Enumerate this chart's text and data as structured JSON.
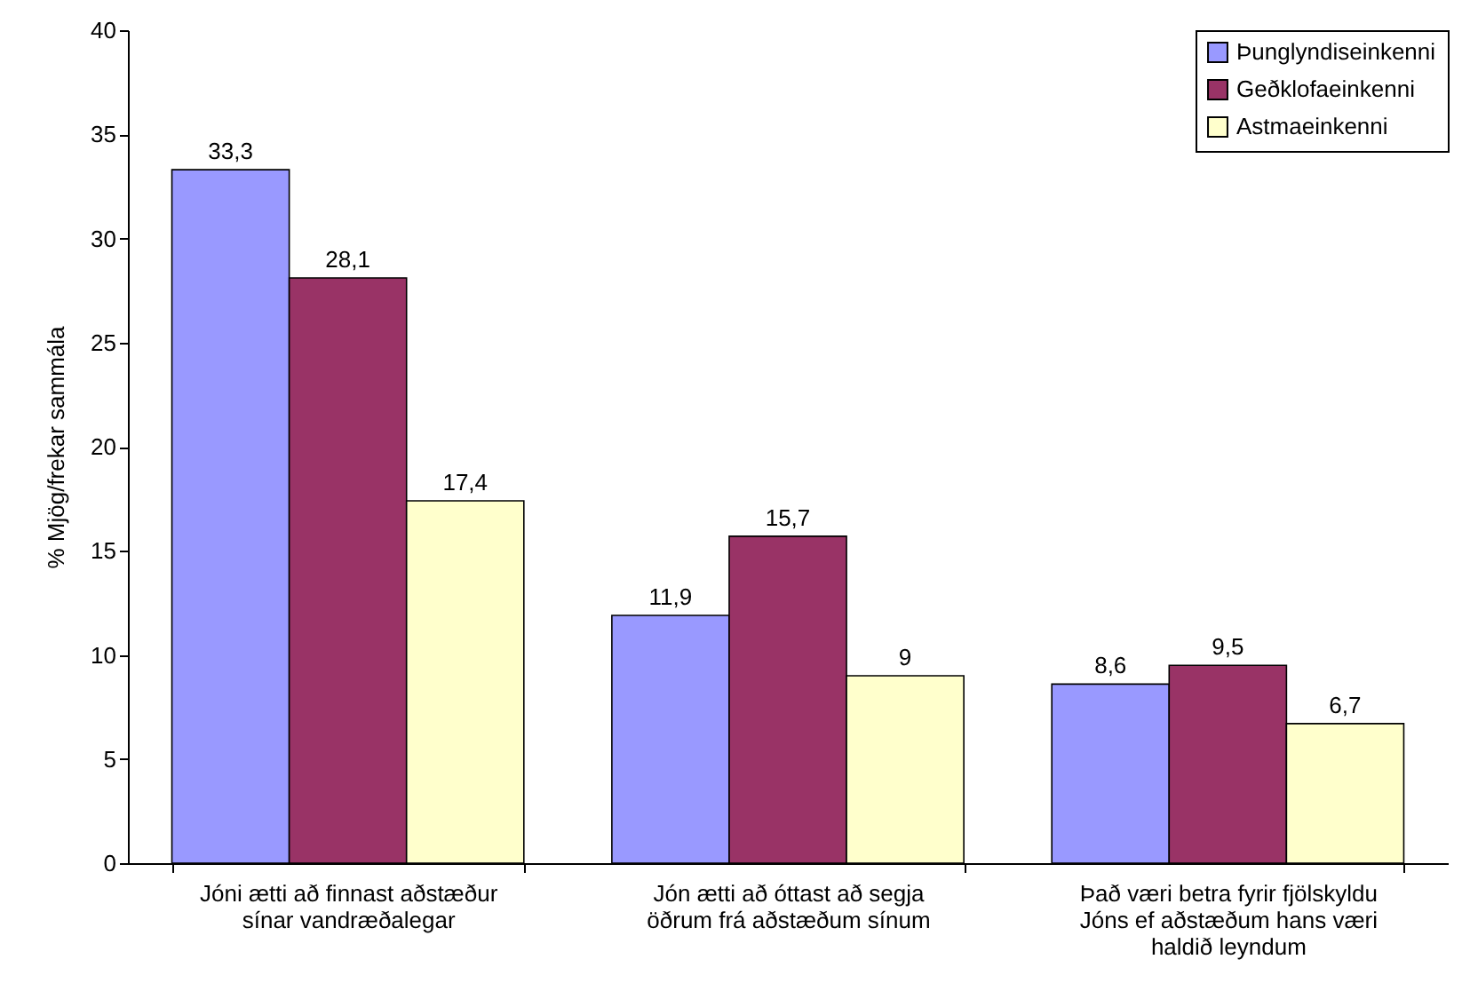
{
  "chart_data": {
    "type": "bar",
    "ylabel": "% Mjög/frekar sammála",
    "categories": [
      "Jóni ætti að finnast aðstæður\nsínar vandræðalegar",
      "Jón ætti að óttast að segja\nöðrum frá aðstæðum sínum",
      "Það væri betra fyrir fjölskyldu\nJóns ef aðstæðum hans væri\nhaldið leyndum"
    ],
    "series": [
      {
        "name": "Þunglyndiseinkenni",
        "color": "#9999ff",
        "values": [
          33.3,
          11.9,
          8.6
        ],
        "value_labels": [
          "33,3",
          "11,9",
          "8,6"
        ]
      },
      {
        "name": "Geðklofaeinkenni",
        "color": "#993366",
        "values": [
          28.1,
          15.7,
          9.5
        ],
        "value_labels": [
          "28,1",
          "15,7",
          "9,5"
        ]
      },
      {
        "name": "Astmaeinkenni",
        "color": "#ffffcc",
        "values": [
          17.4,
          9,
          6.7
        ],
        "value_labels": [
          "17,4",
          "9",
          "6,7"
        ]
      }
    ],
    "ylim": [
      0,
      40
    ],
    "yticks": [
      0,
      5,
      10,
      15,
      20,
      25,
      30,
      35,
      40
    ],
    "grid": false,
    "legend": "top right"
  }
}
